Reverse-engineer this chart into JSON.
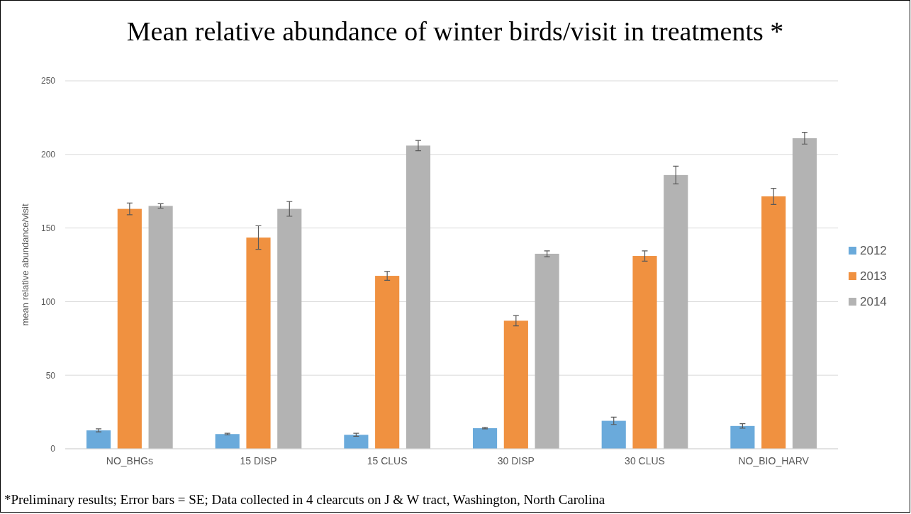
{
  "chart_data": {
    "type": "bar",
    "title": "Mean relative abundance of winter birds/visit in treatments *",
    "ylabel": "mean relative abundance/visit",
    "categories": [
      "NO_BHGs",
      "15 DISP",
      "15 CLUS",
      "30 DISP",
      "30 CLUS",
      "NO_BIO_HARV"
    ],
    "series": [
      {
        "name": "2012",
        "color": "#6aaadb",
        "values": [
          12.5,
          10,
          9.5,
          14,
          19,
          15.5
        ],
        "errors": [
          1,
          0.5,
          1,
          0.5,
          2.5,
          1.5
        ]
      },
      {
        "name": "2013",
        "color": "#f09140",
        "values": [
          163,
          143.5,
          117.5,
          87,
          131,
          171.5
        ],
        "errors": [
          4,
          8,
          3,
          3.5,
          3.5,
          5.5
        ]
      },
      {
        "name": "2014",
        "color": "#b3b3b3",
        "values": [
          165,
          163,
          206,
          132.5,
          186,
          211
        ],
        "errors": [
          1.5,
          5,
          3.5,
          2,
          6,
          4
        ]
      }
    ],
    "ylim": [
      0,
      250
    ],
    "yticks": [
      0,
      50,
      100,
      150,
      200,
      250
    ],
    "grid": "y",
    "legend": "right",
    "annotations": [
      "*Preliminary results; Error bars = SE; Data collected in 4 clearcuts on J & W tract, Washington, North Carolina"
    ]
  }
}
